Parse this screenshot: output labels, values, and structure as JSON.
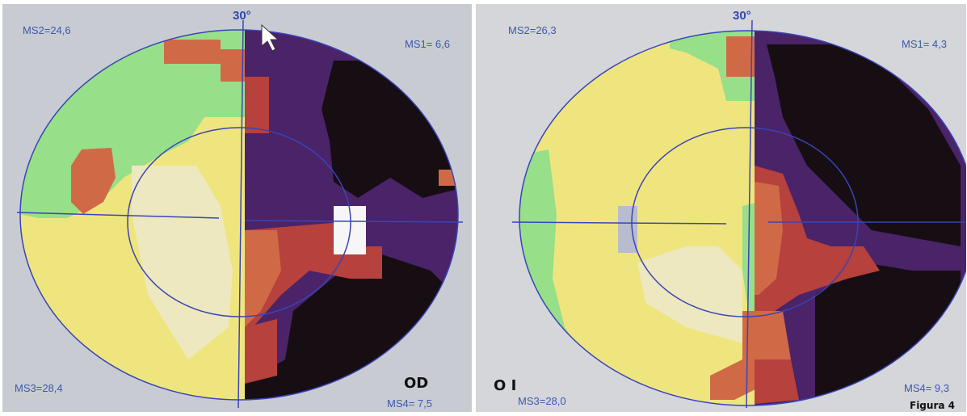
{
  "figure_caption": "Figura 4",
  "colors": {
    "background": "#c9cdd3",
    "ring": "#3a44b8",
    "green": "#97df89",
    "yellow": "#efe57e",
    "pale_yellow": "#ede8bf",
    "light_gray": "#b8bccd",
    "orange": "#d06a46",
    "red": "#b6413d",
    "purple": "#4a2368",
    "dark_purple": "#2c1638",
    "black": "#160e12",
    "white": "#f6f6f6"
  },
  "panels": [
    {
      "eye_label": "OD",
      "degree_label": "30°",
      "ms1": "MS1= 6,6",
      "ms2": "MS2=24,6",
      "ms3": "MS3=28,4",
      "ms4": "MS4= 7,5",
      "cursor_visible": true
    },
    {
      "eye_label": "O I",
      "degree_label": "30°",
      "ms1": "MS1= 4,3",
      "ms2": "MS2=26,3",
      "ms3": "MS3=28,0",
      "ms4": "MS4= 9,3",
      "cursor_visible": false
    }
  ]
}
